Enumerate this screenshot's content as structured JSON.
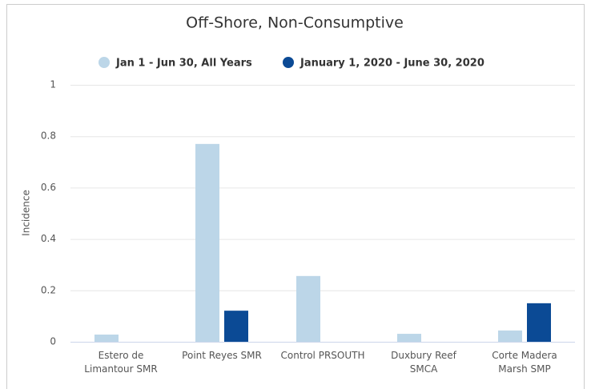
{
  "chart_data": {
    "type": "bar",
    "title": "Off-Shore, Non-Consumptive",
    "y_label": "Incidence",
    "categories": [
      "Estero de Limantour SMR",
      "Point Reyes SMR",
      "Control PRSOUTH",
      "Duxbury Reef SMCA",
      "Corte Madera Marsh SMP"
    ],
    "series": [
      {
        "name": "Jan 1 - Jun 30, All Years",
        "color": "#bcd6e8",
        "values": [
          0.028,
          0.77,
          0.256,
          0.031,
          0.044
        ]
      },
      {
        "name": "January 1, 2020 - June 30, 2020",
        "color": "#0b4a95",
        "values": [
          0,
          0.121,
          0,
          0,
          0.15
        ]
      }
    ],
    "ylim": [
      0,
      1
    ],
    "yticks": [
      0,
      0.2,
      0.4,
      0.6,
      0.8,
      1
    ],
    "grid": true
  }
}
